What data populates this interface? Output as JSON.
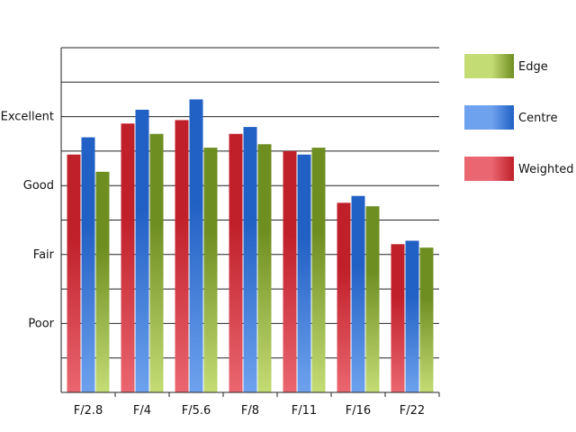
{
  "chart_data": {
    "type": "bar",
    "title": "",
    "xlabel": "",
    "ylabel": "",
    "categories": [
      "F/2.8",
      "F/4",
      "F/5.6",
      "F/8",
      "F/11",
      "F/16",
      "F/22"
    ],
    "ylim": [
      0,
      10
    ],
    "y_ticks": [
      {
        "label": "Poor",
        "value": 2
      },
      {
        "label": "Fair",
        "value": 4
      },
      {
        "label": "Good",
        "value": 6
      },
      {
        "label": "Excellent",
        "value": 8
      }
    ],
    "grid": "horizontal",
    "legend_position": "right",
    "series": [
      {
        "name": "Weighted",
        "color": "#c0202a",
        "light": "#ea6670",
        "values": [
          6.9,
          7.8,
          7.9,
          7.5,
          7.0,
          5.5,
          4.3
        ]
      },
      {
        "name": "Centre",
        "color": "#2160c4",
        "light": "#6ea2ee",
        "values": [
          7.4,
          8.2,
          8.5,
          7.7,
          6.9,
          5.7,
          4.4
        ]
      },
      {
        "name": "Edge",
        "color": "#6f8e22",
        "light": "#c4dc74",
        "values": [
          6.4,
          7.5,
          7.1,
          7.2,
          7.1,
          5.4,
          4.2
        ]
      }
    ],
    "legend_order": [
      "Edge",
      "Centre",
      "Weighted"
    ]
  }
}
